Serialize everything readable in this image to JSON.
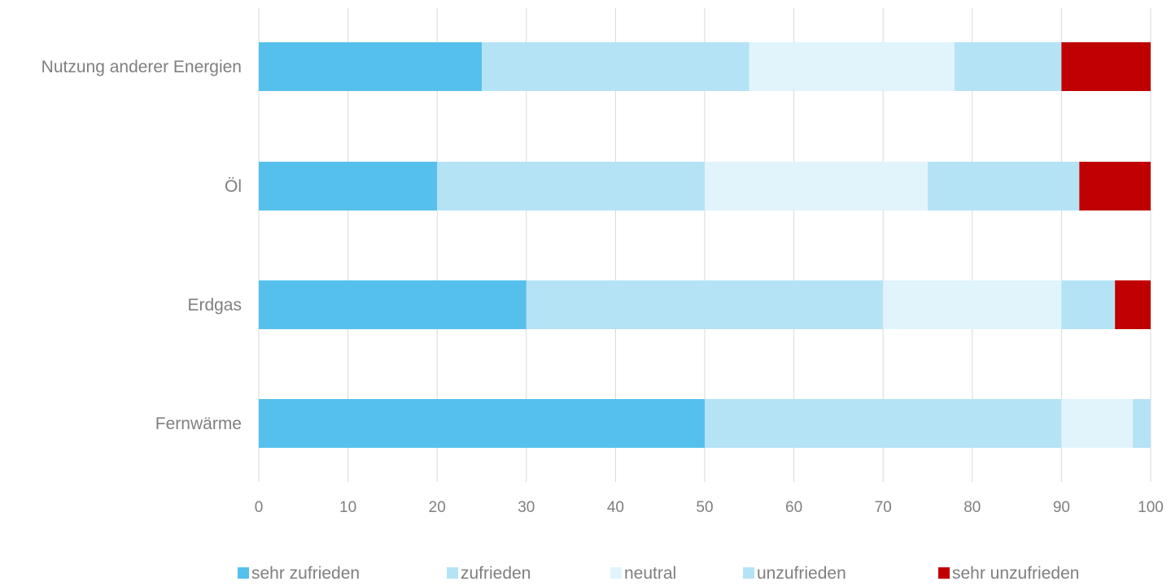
{
  "chart_data": {
    "type": "bar",
    "orientation": "horizontal",
    "stacked": true,
    "categories": [
      "Nutzung anderer Energien",
      "Öl",
      "Erdgas",
      "Fernwärme"
    ],
    "series": [
      {
        "name": "sehr zufrieden",
        "color": "#56c0ec",
        "values": [
          25,
          20,
          30,
          50
        ]
      },
      {
        "name": "zufrieden",
        "color": "#b5e3f6",
        "values": [
          30,
          30,
          40,
          40
        ]
      },
      {
        "name": "neutral",
        "color": "#e1f4fc",
        "values": [
          23,
          25,
          20,
          8
        ]
      },
      {
        "name": "unzufrieden",
        "color": "#b5e3f6",
        "values": [
          12,
          17,
          6,
          2
        ]
      },
      {
        "name": "sehr unzufrieden",
        "color": "#c00000",
        "values": [
          10,
          8,
          4,
          0
        ]
      }
    ],
    "xlim": [
      0,
      100
    ],
    "xticks": [
      "0",
      "10",
      "20",
      "30",
      "40",
      "50",
      "60",
      "70",
      "80",
      "90",
      "100"
    ],
    "grid": "vertical",
    "legend_position": "bottom"
  }
}
